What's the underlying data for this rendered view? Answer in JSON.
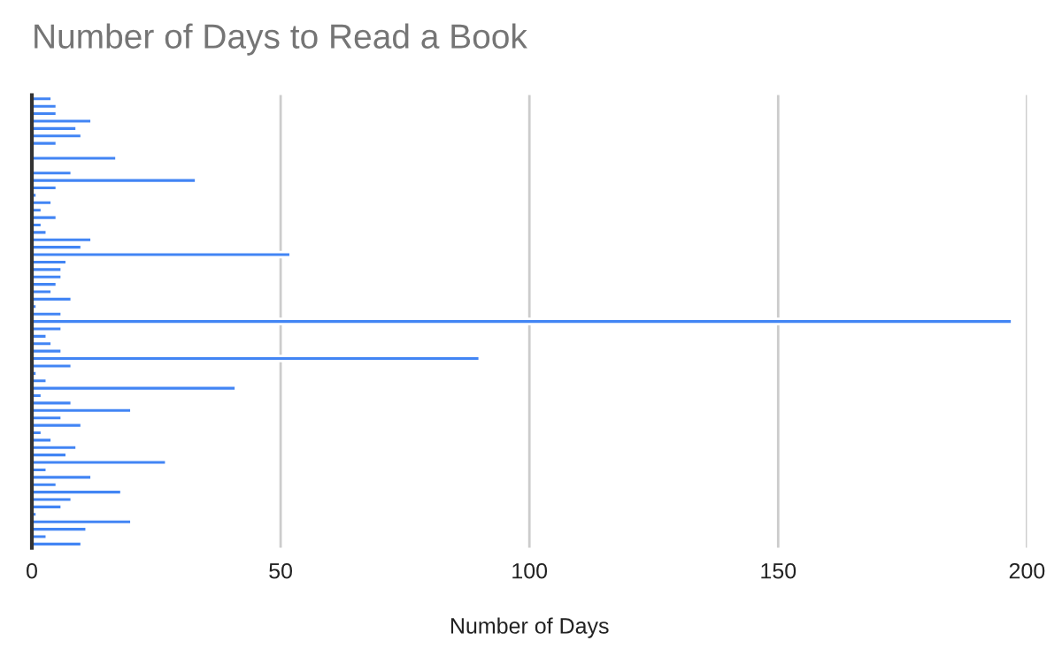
{
  "chart_data": {
    "type": "bar",
    "orientation": "horizontal",
    "title": "Number of Days to Read a Book",
    "xlabel": "Number of Days",
    "categories": [
      null,
      null,
      null,
      null,
      null,
      null,
      null,
      null,
      null,
      null,
      null,
      null,
      null,
      null,
      null,
      null,
      null,
      null,
      null,
      null,
      null,
      null,
      null,
      null,
      null,
      null,
      null,
      null,
      null,
      null,
      null,
      null,
      null,
      null,
      null,
      null,
      null,
      null,
      null,
      null,
      null,
      null,
      null,
      null,
      null,
      null,
      null,
      null,
      null,
      null,
      null,
      null,
      null,
      null,
      null,
      null,
      null,
      null,
      null,
      null,
      null
    ],
    "values": [
      4,
      5,
      5,
      12,
      9,
      10,
      5,
      null,
      17,
      null,
      8,
      33,
      5,
      1,
      4,
      2,
      5,
      2,
      3,
      12,
      10,
      52,
      7,
      6,
      6,
      5,
      4,
      8,
      1,
      6,
      197,
      6,
      3,
      4,
      6,
      90,
      8,
      1,
      3,
      41,
      2,
      8,
      20,
      6,
      10,
      2,
      4,
      9,
      7,
      27,
      3,
      12,
      5,
      18,
      8,
      6,
      1,
      20,
      11,
      3,
      10
    ],
    "color": "#4285f4",
    "xlim": [
      0,
      200
    ],
    "xticks": [
      0,
      50,
      100,
      150,
      200
    ],
    "grid": "x"
  }
}
